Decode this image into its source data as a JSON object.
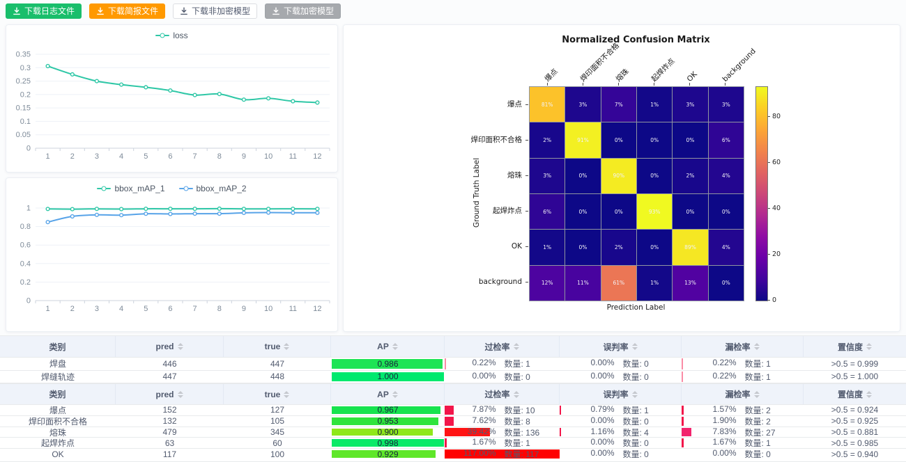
{
  "toolbar": {
    "buttons": [
      {
        "id": "download-log",
        "label": "下载日志文件",
        "bg": "#19be6b",
        "fg": "#ffffff",
        "border": "#19be6b"
      },
      {
        "id": "download-brief",
        "label": "下载简报文件",
        "bg": "#ff9900",
        "fg": "#ffffff",
        "border": "#ff9900"
      },
      {
        "id": "download-plain-model",
        "label": "下载非加密模型",
        "bg": "#ffffff",
        "fg": "#515a6e",
        "border": "#dcdee2"
      },
      {
        "id": "download-encrypted-model",
        "label": "下载加密模型",
        "bg": "#a6a9ad",
        "fg": "#ffffff",
        "border": "#9ea3a8"
      }
    ]
  },
  "chart_data": [
    {
      "type": "line",
      "title": "loss",
      "legend_position": "top",
      "grid": true,
      "x": [
        1,
        2,
        3,
        4,
        5,
        6,
        7,
        8,
        9,
        10,
        11,
        12
      ],
      "series": [
        {
          "name": "loss",
          "color": "#2ec7a6",
          "values": [
            0.306,
            0.275,
            0.25,
            0.237,
            0.227,
            0.215,
            0.198,
            0.202,
            0.181,
            0.186,
            0.175,
            0.17
          ]
        }
      ],
      "ylim": [
        0,
        0.35
      ],
      "yticks": [
        0,
        0.05,
        0.1,
        0.15,
        0.2,
        0.25,
        0.3,
        0.35
      ],
      "ytick_labels": [
        "0",
        "0.05",
        "0.1",
        "0.15",
        "0.2",
        "0.25",
        "0.3",
        "0.35"
      ]
    },
    {
      "type": "line",
      "title": "",
      "legend_position": "top",
      "grid": true,
      "x": [
        1,
        2,
        3,
        4,
        5,
        6,
        7,
        8,
        9,
        10,
        11,
        12
      ],
      "series": [
        {
          "name": "bbox_mAP_1",
          "color": "#2ec7a6",
          "values": [
            0.99,
            0.988,
            0.991,
            0.989,
            0.992,
            0.992,
            0.992,
            0.993,
            0.991,
            0.991,
            0.992,
            0.991
          ]
        },
        {
          "name": "bbox_mAP_2",
          "color": "#57a3e8",
          "values": [
            0.848,
            0.91,
            0.926,
            0.923,
            0.938,
            0.936,
            0.939,
            0.939,
            0.948,
            0.951,
            0.949,
            0.949
          ]
        }
      ],
      "ylim": [
        0,
        1
      ],
      "yticks": [
        0,
        0.2,
        0.4,
        0.6,
        0.8,
        1
      ],
      "ytick_labels": [
        "0",
        "0.2",
        "0.4",
        "0.6",
        "0.8",
        "1"
      ]
    },
    {
      "type": "heatmap",
      "title": "Normalized Confusion Matrix",
      "xlabel": "Prediction Label",
      "ylabel": "Ground Truth Label",
      "labels": [
        "爆点",
        "焊印面积不合格",
        "熔珠",
        "起焊炸点",
        "OK",
        "background"
      ],
      "matrix": [
        [
          81,
          3,
          7,
          1,
          3,
          3
        ],
        [
          2,
          91,
          0,
          0,
          0,
          6
        ],
        [
          3,
          0,
          90,
          0,
          2,
          4
        ],
        [
          6,
          0,
          0,
          93,
          0,
          0
        ],
        [
          1,
          0,
          2,
          0,
          89,
          4
        ],
        [
          12,
          11,
          61,
          1,
          13,
          0
        ]
      ],
      "unit": "%",
      "vmin": 0,
      "vmax": 93,
      "colormap": "plasma",
      "colorbar_ticks": [
        0,
        20,
        40,
        60,
        80
      ]
    }
  ],
  "tables": [
    {
      "columns": [
        {
          "label": "类别",
          "sortable": false
        },
        {
          "label": "pred",
          "sortable": true
        },
        {
          "label": "true",
          "sortable": true
        },
        {
          "label": "AP",
          "sortable": true
        },
        {
          "label": "过检率",
          "sortable": true
        },
        {
          "label": "误判率",
          "sortable": true
        },
        {
          "label": "漏检率",
          "sortable": true
        },
        {
          "label": "置信度",
          "sortable": true
        }
      ],
      "rows": [
        {
          "category": "焊盘",
          "pred": "446",
          "truth": "447",
          "ap": {
            "text": "0.986",
            "value": 0.986,
            "color": "#1ee455"
          },
          "overdetect": {
            "pct": "0.22%",
            "count": "数量: 1",
            "value": 0.22,
            "bar": "#fa8ca6"
          },
          "misjudge": {
            "pct": "0.00%",
            "count": "数量: 0",
            "value": 0,
            "bar": ""
          },
          "missdetect": {
            "pct": "0.22%",
            "count": "数量: 1",
            "value": 0.22,
            "bar": "#fa8ca6"
          },
          "confidence": ">0.5 = 0.999"
        },
        {
          "category": "焊缝轨迹",
          "pred": "447",
          "truth": "448",
          "ap": {
            "text": "1.000",
            "value": 1.0,
            "color": "#00e96e"
          },
          "overdetect": {
            "pct": "0.00%",
            "count": "数量: 0",
            "value": 0,
            "bar": ""
          },
          "misjudge": {
            "pct": "0.00%",
            "count": "数量: 0",
            "value": 0,
            "bar": ""
          },
          "missdetect": {
            "pct": "0.22%",
            "count": "数量: 1",
            "value": 0.22,
            "bar": "#fa8ca6"
          },
          "confidence": ">0.5 = 1.000"
        }
      ]
    },
    {
      "columns": [
        {
          "label": "类别",
          "sortable": false
        },
        {
          "label": "pred",
          "sortable": true
        },
        {
          "label": "true",
          "sortable": true
        },
        {
          "label": "AP",
          "sortable": true
        },
        {
          "label": "过检率",
          "sortable": true
        },
        {
          "label": "误判率",
          "sortable": true
        },
        {
          "label": "漏检率",
          "sortable": true
        },
        {
          "label": "置信度",
          "sortable": true
        }
      ],
      "rows": [
        {
          "category": "爆点",
          "pred": "152",
          "truth": "127",
          "ap": {
            "text": "0.967",
            "value": 0.967,
            "color": "#17e34e"
          },
          "overdetect": {
            "pct": "7.87%",
            "count": "数量: 10",
            "value": 7.87,
            "bar": "#f2164a"
          },
          "misjudge": {
            "pct": "0.79%",
            "count": "数量: 1",
            "value": 0.79,
            "bar": "#f2164a"
          },
          "missdetect": {
            "pct": "1.57%",
            "count": "数量: 2",
            "value": 1.57,
            "bar": "#f2164a"
          },
          "confidence": ">0.5 = 0.924"
        },
        {
          "category": "焊印面积不合格",
          "pred": "132",
          "truth": "105",
          "ap": {
            "text": "0.953",
            "value": 0.953,
            "color": "#2fe43c"
          },
          "overdetect": {
            "pct": "7.62%",
            "count": "数量: 8",
            "value": 7.62,
            "bar": "#f2164a"
          },
          "misjudge": {
            "pct": "0.00%",
            "count": "数量: 0",
            "value": 0,
            "bar": ""
          },
          "missdetect": {
            "pct": "1.90%",
            "count": "数量: 2",
            "value": 1.9,
            "bar": "#f2164a"
          },
          "confidence": ">0.5 = 0.925"
        },
        {
          "category": "熔珠",
          "pred": "479",
          "truth": "345",
          "ap": {
            "text": "0.900",
            "value": 0.9,
            "color": "#8fe81a"
          },
          "overdetect": {
            "pct": "39.42%",
            "count": "数量: 136",
            "value": 39.42,
            "bar": "#ff1414"
          },
          "misjudge": {
            "pct": "1.16%",
            "count": "数量: 4",
            "value": 1.16,
            "bar": "#f2164a"
          },
          "missdetect": {
            "pct": "7.83%",
            "count": "数量: 27",
            "value": 7.83,
            "bar": "#f2246d"
          },
          "confidence": ">0.5 = 0.881"
        },
        {
          "category": "起焊炸点",
          "pred": "63",
          "truth": "60",
          "ap": {
            "text": "0.998",
            "value": 0.998,
            "color": "#0bea68"
          },
          "overdetect": {
            "pct": "1.67%",
            "count": "数量: 1",
            "value": 1.67,
            "bar": "#f2164a"
          },
          "misjudge": {
            "pct": "0.00%",
            "count": "数量: 0",
            "value": 0,
            "bar": ""
          },
          "missdetect": {
            "pct": "1.67%",
            "count": "数量: 1",
            "value": 1.67,
            "bar": "#f2164a"
          },
          "confidence": ">0.5 = 0.985"
        },
        {
          "category": "OK",
          "pred": "117",
          "truth": "100",
          "ap": {
            "text": "0.929",
            "value": 0.929,
            "color": "#5fe729"
          },
          "overdetect": {
            "pct": "117.00%",
            "count": "数量: 117",
            "value": 117,
            "bar": "#fe0202"
          },
          "misjudge": {
            "pct": "0.00%",
            "count": "数量: 0",
            "value": 0,
            "bar": ""
          },
          "missdetect": {
            "pct": "0.00%",
            "count": "数量: 0",
            "value": 0,
            "bar": ""
          },
          "confidence": ">0.5 = 0.940"
        }
      ]
    }
  ]
}
